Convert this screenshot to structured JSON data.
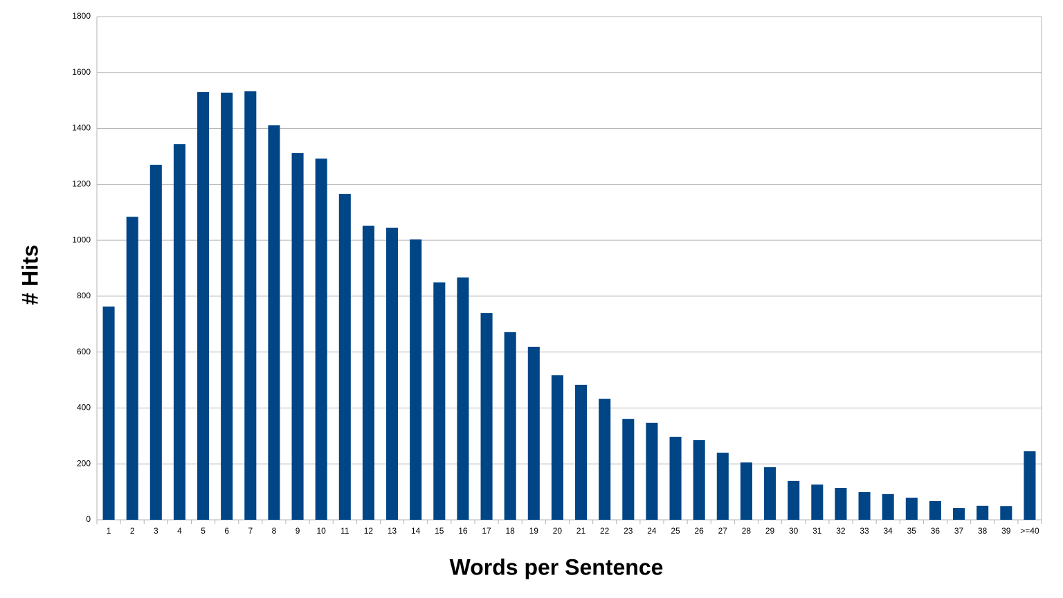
{
  "chart_data": {
    "type": "bar",
    "x_label": "Words per Sentence",
    "y_label": "# Hits",
    "categories": [
      "1",
      "2",
      "3",
      "4",
      "5",
      "6",
      "7",
      "8",
      "9",
      "10",
      "11",
      "12",
      "13",
      "14",
      "15",
      "16",
      "17",
      "18",
      "19",
      "20",
      "21",
      "22",
      "23",
      "24",
      "25",
      "26",
      "27",
      "28",
      "29",
      "30",
      "31",
      "32",
      "33",
      "34",
      "35",
      "36",
      "37",
      "38",
      "39",
      ">=40"
    ],
    "values": [
      763,
      1084,
      1270,
      1344,
      1530,
      1528,
      1533,
      1411,
      1312,
      1292,
      1166,
      1052,
      1045,
      1003,
      849,
      867,
      740,
      671,
      619,
      517,
      483,
      433,
      361,
      347,
      297,
      285,
      240,
      205,
      188,
      139,
      126,
      114,
      99,
      92,
      79,
      67,
      42,
      50,
      49,
      245
    ],
    "color": "#004586",
    "ylim": [
      0,
      1800
    ],
    "yticks": [
      0,
      200,
      400,
      600,
      800,
      1000,
      1200,
      1400,
      1600,
      1800
    ],
    "grid": true
  }
}
